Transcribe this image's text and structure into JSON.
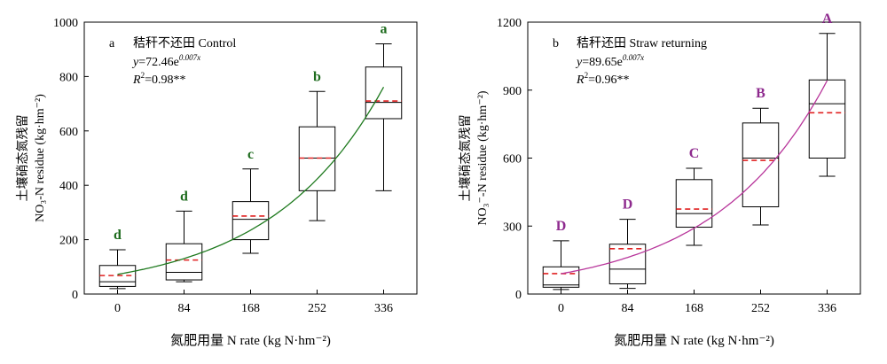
{
  "chart_data": [
    {
      "panel": "a",
      "type": "box",
      "title": "秸秆不还田 Control",
      "equation": {
        "y": "y",
        "base": "=72.46e",
        "exp": "0.007x"
      },
      "r2": {
        "r": "R",
        "sup": "2",
        "rest": "=0.98**"
      },
      "xlabel": "氮肥用量 N rate (kg N·hm⁻²)",
      "ylabel_line1": "土壤硝态氮残留",
      "ylabel_line2": "NO₃-N residue (kg·hm⁻²)",
      "categories": [
        "0",
        "84",
        "168",
        "252",
        "336"
      ],
      "x": [
        0,
        84,
        168,
        252,
        336
      ],
      "xlim": [
        -42,
        378
      ],
      "ylim": [
        0,
        1000
      ],
      "yticks": [
        0,
        200,
        400,
        600,
        800,
        1000
      ],
      "letter_color": "#1d6b1d",
      "fit_color": "#1f7a1f",
      "fit": {
        "a": 72.46,
        "b": 0.007
      },
      "boxes": [
        {
          "category": "0",
          "letter": "d",
          "min": 20,
          "q1": 28,
          "median": 45,
          "mean": 68,
          "q3": 105,
          "max": 163
        },
        {
          "category": "84",
          "letter": "d",
          "min": 45,
          "q1": 52,
          "median": 80,
          "mean": 125,
          "q3": 185,
          "max": 305
        },
        {
          "category": "168",
          "letter": "c",
          "min": 150,
          "q1": 200,
          "median": 275,
          "mean": 287,
          "q3": 340,
          "max": 460
        },
        {
          "category": "252",
          "letter": "b",
          "min": 270,
          "q1": 380,
          "median": 500,
          "mean": 500,
          "q3": 615,
          "max": 745
        },
        {
          "category": "336",
          "letter": "a",
          "min": 380,
          "q1": 645,
          "median": 705,
          "mean": 710,
          "q3": 835,
          "max": 920
        }
      ]
    },
    {
      "panel": "b",
      "type": "box",
      "title": "秸秆还田 Straw returning",
      "equation": {
        "y": "y",
        "base": "=89.65e",
        "exp": "0.007x"
      },
      "r2": {
        "r": "R",
        "sup": "2",
        "rest": "=0.96**"
      },
      "xlabel": "氮肥用量 N rate (kg N·hm⁻²)",
      "ylabel_line1": "土壤硝态氮残留",
      "ylabel_line2": "NO₃⁻-N residue (kg·hm⁻²)",
      "categories": [
        "0",
        "84",
        "168",
        "252",
        "336"
      ],
      "x": [
        0,
        84,
        168,
        252,
        336
      ],
      "xlim": [
        -42,
        378
      ],
      "ylim": [
        0,
        1200
      ],
      "yticks": [
        0,
        300,
        600,
        900,
        1200
      ],
      "letter_color": "#8e2a8e",
      "fit_color": "#b8369b",
      "fit": {
        "a": 89.65,
        "b": 0.007
      },
      "boxes": [
        {
          "category": "0",
          "letter": "D",
          "min": 20,
          "q1": 30,
          "median": 40,
          "mean": 90,
          "q3": 120,
          "max": 235
        },
        {
          "category": "84",
          "letter": "D",
          "min": 25,
          "q1": 45,
          "median": 110,
          "mean": 200,
          "q3": 220,
          "max": 330
        },
        {
          "category": "168",
          "letter": "C",
          "min": 215,
          "q1": 295,
          "median": 355,
          "mean": 375,
          "q3": 505,
          "max": 555
        },
        {
          "category": "252",
          "letter": "B",
          "min": 305,
          "q1": 385,
          "median": 600,
          "mean": 590,
          "q3": 755,
          "max": 820
        },
        {
          "category": "336",
          "letter": "A",
          "min": 520,
          "q1": 600,
          "median": 840,
          "mean": 800,
          "q3": 945,
          "max": 1150
        }
      ]
    }
  ]
}
